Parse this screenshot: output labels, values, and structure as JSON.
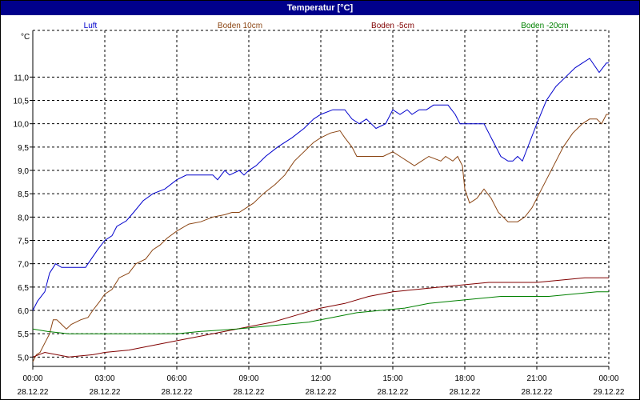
{
  "window": {
    "title": "Temperatur [°C]"
  },
  "chart_data": {
    "type": "line",
    "title": "Temperatur [°C]",
    "ylabel": "°C",
    "xlabel": "",
    "ylim": [
      4.8,
      12.0
    ],
    "xlim": [
      0,
      24
    ],
    "grid": true,
    "legend_position": "top",
    "yticks": [
      {
        "v": 5.0,
        "label": "5,0"
      },
      {
        "v": 5.5,
        "label": "5,5"
      },
      {
        "v": 6.0,
        "label": "6,0"
      },
      {
        "v": 6.5,
        "label": "6,5"
      },
      {
        "v": 7.0,
        "label": "7,0"
      },
      {
        "v": 7.5,
        "label": "7,5"
      },
      {
        "v": 8.0,
        "label": "8,0"
      },
      {
        "v": 8.5,
        "label": "8,5"
      },
      {
        "v": 9.0,
        "label": "9,0"
      },
      {
        "v": 9.5,
        "label": "9,5"
      },
      {
        "v": 10.0,
        "label": "10,0"
      },
      {
        "v": 10.5,
        "label": "10,5"
      },
      {
        "v": 11.0,
        "label": "11,0"
      }
    ],
    "xticks": [
      {
        "v": 0,
        "time": "00:00",
        "date": "28.12.22"
      },
      {
        "v": 3,
        "time": "03:00",
        "date": "28.12.22"
      },
      {
        "v": 6,
        "time": "06:00",
        "date": "28.12.22"
      },
      {
        "v": 9,
        "time": "09:00",
        "date": "28.12.22"
      },
      {
        "v": 12,
        "time": "12:00",
        "date": "28.12.22"
      },
      {
        "v": 15,
        "time": "15:00",
        "date": "28.12.22"
      },
      {
        "v": 18,
        "time": "18:00",
        "date": "28.12.22"
      },
      {
        "v": 21,
        "time": "21:00",
        "date": "28.12.22"
      },
      {
        "v": 24,
        "time": "00:00",
        "date": "29.12.22"
      }
    ],
    "series": [
      {
        "name": "Luft",
        "color": "#0000cc",
        "points": [
          [
            0,
            6.0
          ],
          [
            0.2,
            6.2
          ],
          [
            0.5,
            6.4
          ],
          [
            0.7,
            6.8
          ],
          [
            0.95,
            7.0
          ],
          [
            1.2,
            6.92
          ],
          [
            2.2,
            6.92
          ],
          [
            2.3,
            7.0
          ],
          [
            2.7,
            7.3
          ],
          [
            3.0,
            7.5
          ],
          [
            3.3,
            7.6
          ],
          [
            3.5,
            7.8
          ],
          [
            3.9,
            7.92
          ],
          [
            4.2,
            8.1
          ],
          [
            4.6,
            8.35
          ],
          [
            5.0,
            8.5
          ],
          [
            5.5,
            8.6
          ],
          [
            6.0,
            8.8
          ],
          [
            6.4,
            8.9
          ],
          [
            7.5,
            8.9
          ],
          [
            7.7,
            8.8
          ],
          [
            8.0,
            9.0
          ],
          [
            8.2,
            8.9
          ],
          [
            8.6,
            9.0
          ],
          [
            8.8,
            8.9
          ],
          [
            9.0,
            9.0
          ],
          [
            9.3,
            9.1
          ],
          [
            9.7,
            9.3
          ],
          [
            10.2,
            9.5
          ],
          [
            10.8,
            9.7
          ],
          [
            11.3,
            9.9
          ],
          [
            11.7,
            10.1
          ],
          [
            12.0,
            10.2
          ],
          [
            12.5,
            10.3
          ],
          [
            13.0,
            10.3
          ],
          [
            13.3,
            10.1
          ],
          [
            13.6,
            10.0
          ],
          [
            13.9,
            10.1
          ],
          [
            14.1,
            10.0
          ],
          [
            14.3,
            9.9
          ],
          [
            14.7,
            10.0
          ],
          [
            15.0,
            10.3
          ],
          [
            15.3,
            10.2
          ],
          [
            15.6,
            10.3
          ],
          [
            15.8,
            10.2
          ],
          [
            16.1,
            10.3
          ],
          [
            16.4,
            10.3
          ],
          [
            16.7,
            10.4
          ],
          [
            17.3,
            10.4
          ],
          [
            17.6,
            10.2
          ],
          [
            17.8,
            10.0
          ],
          [
            18.8,
            10.0
          ],
          [
            19.2,
            9.6
          ],
          [
            19.5,
            9.3
          ],
          [
            19.8,
            9.2
          ],
          [
            20.0,
            9.2
          ],
          [
            20.2,
            9.3
          ],
          [
            20.4,
            9.2
          ],
          [
            20.7,
            9.6
          ],
          [
            21.0,
            10.0
          ],
          [
            21.4,
            10.5
          ],
          [
            21.8,
            10.8
          ],
          [
            22.2,
            11.0
          ],
          [
            22.6,
            11.2
          ],
          [
            22.9,
            11.3
          ],
          [
            23.2,
            11.4
          ],
          [
            23.6,
            11.1
          ],
          [
            23.9,
            11.3
          ],
          [
            24.0,
            11.3
          ]
        ]
      },
      {
        "name": "Boden 10cm",
        "color": "#8b4513",
        "points": [
          [
            0,
            4.9
          ],
          [
            0.15,
            5.05
          ],
          [
            0.3,
            5.1
          ],
          [
            0.5,
            5.3
          ],
          [
            0.7,
            5.5
          ],
          [
            0.85,
            5.8
          ],
          [
            1.0,
            5.8
          ],
          [
            1.2,
            5.7
          ],
          [
            1.4,
            5.6
          ],
          [
            1.6,
            5.7
          ],
          [
            2.0,
            5.8
          ],
          [
            2.3,
            5.85
          ],
          [
            2.5,
            6.0
          ],
          [
            2.8,
            6.2
          ],
          [
            3.0,
            6.35
          ],
          [
            3.3,
            6.45
          ],
          [
            3.6,
            6.7
          ],
          [
            4.0,
            6.8
          ],
          [
            4.3,
            7.0
          ],
          [
            4.7,
            7.1
          ],
          [
            5.0,
            7.3
          ],
          [
            5.3,
            7.4
          ],
          [
            5.6,
            7.55
          ],
          [
            6.0,
            7.7
          ],
          [
            6.5,
            7.85
          ],
          [
            7.0,
            7.9
          ],
          [
            7.5,
            8.0
          ],
          [
            8.0,
            8.05
          ],
          [
            8.3,
            8.1
          ],
          [
            8.6,
            8.1
          ],
          [
            8.9,
            8.2
          ],
          [
            9.2,
            8.3
          ],
          [
            9.6,
            8.5
          ],
          [
            10.1,
            8.7
          ],
          [
            10.5,
            8.9
          ],
          [
            10.9,
            9.2
          ],
          [
            11.3,
            9.4
          ],
          [
            11.7,
            9.6
          ],
          [
            12.0,
            9.7
          ],
          [
            12.4,
            9.8
          ],
          [
            12.8,
            9.85
          ],
          [
            13.0,
            9.7
          ],
          [
            13.3,
            9.5
          ],
          [
            13.5,
            9.3
          ],
          [
            14.2,
            9.3
          ],
          [
            14.6,
            9.3
          ],
          [
            15.0,
            9.4
          ],
          [
            15.3,
            9.3
          ],
          [
            15.6,
            9.2
          ],
          [
            15.9,
            9.1
          ],
          [
            16.2,
            9.2
          ],
          [
            16.5,
            9.3
          ],
          [
            17.0,
            9.2
          ],
          [
            17.2,
            9.3
          ],
          [
            17.5,
            9.2
          ],
          [
            17.7,
            9.3
          ],
          [
            17.9,
            9.1
          ],
          [
            18.0,
            8.6
          ],
          [
            18.2,
            8.3
          ],
          [
            18.5,
            8.4
          ],
          [
            18.8,
            8.6
          ],
          [
            19.1,
            8.4
          ],
          [
            19.4,
            8.1
          ],
          [
            19.8,
            7.9
          ],
          [
            20.2,
            7.9
          ],
          [
            20.5,
            8.0
          ],
          [
            20.8,
            8.2
          ],
          [
            21.2,
            8.6
          ],
          [
            21.5,
            8.9
          ],
          [
            21.8,
            9.2
          ],
          [
            22.1,
            9.5
          ],
          [
            22.5,
            9.8
          ],
          [
            22.9,
            10.0
          ],
          [
            23.2,
            10.1
          ],
          [
            23.5,
            10.1
          ],
          [
            23.7,
            10.0
          ],
          [
            23.9,
            10.2
          ],
          [
            24.0,
            10.2
          ]
        ]
      },
      {
        "name": "Boden -5cm",
        "color": "#800000",
        "points": [
          [
            0,
            5.0
          ],
          [
            0.5,
            5.1
          ],
          [
            1.5,
            5.0
          ],
          [
            2.5,
            5.05
          ],
          [
            3.0,
            5.1
          ],
          [
            4.0,
            5.15
          ],
          [
            5.0,
            5.25
          ],
          [
            6.0,
            5.35
          ],
          [
            7.0,
            5.45
          ],
          [
            8.0,
            5.55
          ],
          [
            9.0,
            5.65
          ],
          [
            10.0,
            5.75
          ],
          [
            11.0,
            5.9
          ],
          [
            12.0,
            6.05
          ],
          [
            13.0,
            6.15
          ],
          [
            14.0,
            6.3
          ],
          [
            15.0,
            6.4
          ],
          [
            16.0,
            6.45
          ],
          [
            17.0,
            6.5
          ],
          [
            18.0,
            6.55
          ],
          [
            19.0,
            6.6
          ],
          [
            20.0,
            6.6
          ],
          [
            21.0,
            6.6
          ],
          [
            22.0,
            6.65
          ],
          [
            23.0,
            6.7
          ],
          [
            24.0,
            6.7
          ]
        ]
      },
      {
        "name": "Boden -20cm",
        "color": "#008000",
        "points": [
          [
            0,
            5.6
          ],
          [
            0.6,
            5.55
          ],
          [
            1.5,
            5.5
          ],
          [
            3.0,
            5.5
          ],
          [
            4.5,
            5.5
          ],
          [
            6.0,
            5.5
          ],
          [
            7.0,
            5.55
          ],
          [
            8.5,
            5.6
          ],
          [
            9.5,
            5.65
          ],
          [
            10.5,
            5.7
          ],
          [
            11.5,
            5.75
          ],
          [
            12.5,
            5.85
          ],
          [
            13.5,
            5.95
          ],
          [
            14.5,
            6.0
          ],
          [
            15.5,
            6.05
          ],
          [
            16.5,
            6.15
          ],
          [
            17.5,
            6.2
          ],
          [
            18.5,
            6.25
          ],
          [
            19.5,
            6.3
          ],
          [
            20.5,
            6.3
          ],
          [
            21.5,
            6.3
          ],
          [
            22.5,
            6.35
          ],
          [
            23.5,
            6.4
          ],
          [
            24.0,
            6.4
          ]
        ]
      }
    ]
  }
}
